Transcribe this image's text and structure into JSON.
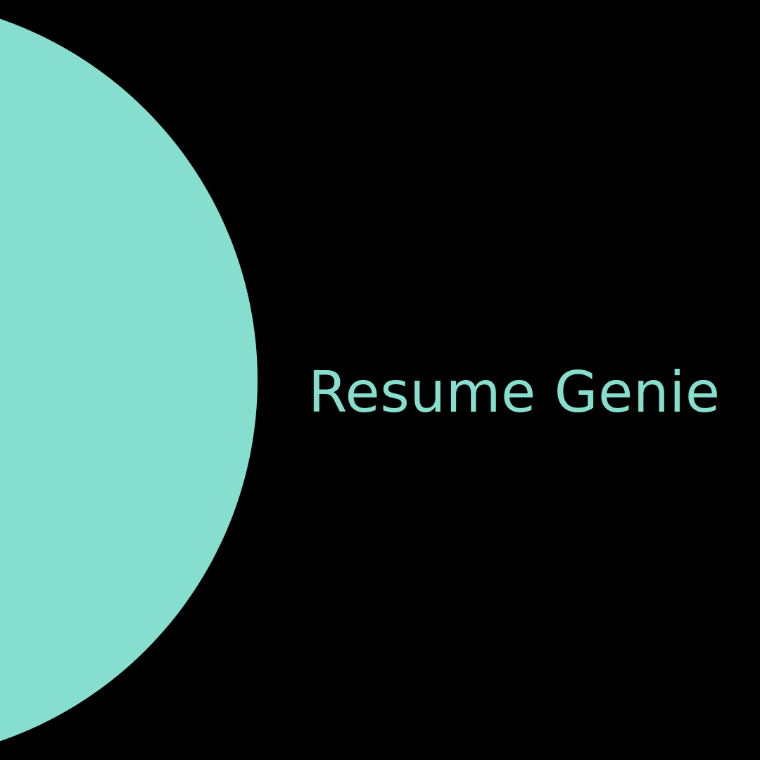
{
  "brand": {
    "name": "Resume Genie",
    "accent_color": "#86DECE",
    "background_color": "#000000"
  }
}
